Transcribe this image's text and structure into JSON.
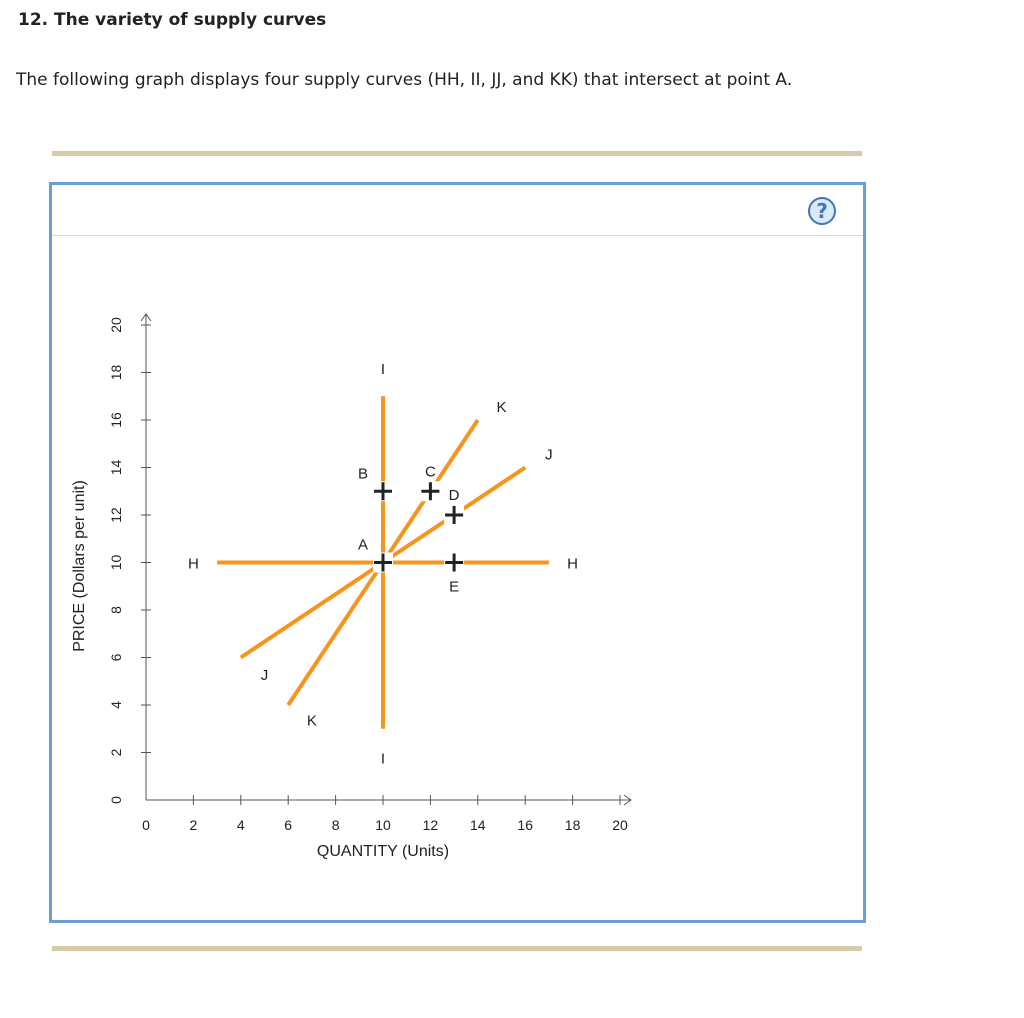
{
  "question": {
    "title": "12. The variety of supply curves",
    "text": "The following graph displays four supply curves (HH, II, JJ, and KK) that intersect at point A."
  },
  "help_button": {
    "label": "?"
  },
  "colors": {
    "curve": "#f7941d",
    "axis": "#555555",
    "point": "#222222",
    "frame": "#6a9fd4",
    "rule": "#d8cba6"
  },
  "chart_data": {
    "type": "line",
    "xlabel": "QUANTITY (Units)",
    "ylabel": "PRICE (Dollars per unit)",
    "xlim": [
      0,
      20
    ],
    "ylim": [
      0,
      20
    ],
    "x_ticks": [
      0,
      2,
      4,
      6,
      8,
      10,
      12,
      14,
      16,
      18,
      20
    ],
    "y_ticks": [
      0,
      2,
      4,
      6,
      8,
      10,
      12,
      14,
      16,
      18,
      20
    ],
    "series": [
      {
        "name": "HH",
        "points": [
          [
            3,
            10
          ],
          [
            17,
            10
          ]
        ],
        "labels": [
          {
            "text": "H",
            "at": [
              2,
              10
            ]
          },
          {
            "text": "H",
            "at": [
              18,
              10
            ]
          }
        ]
      },
      {
        "name": "II",
        "points": [
          [
            10,
            3
          ],
          [
            10,
            17
          ]
        ],
        "labels": [
          {
            "text": "I",
            "at": [
              10,
              1.8
            ]
          },
          {
            "text": "I",
            "at": [
              10,
              18.2
            ]
          }
        ]
      },
      {
        "name": "JJ",
        "points": [
          [
            4,
            6
          ],
          [
            16,
            14
          ]
        ],
        "labels": [
          {
            "text": "J",
            "at": [
              5,
              5.3
            ]
          },
          {
            "text": "J",
            "at": [
              17,
              14.6
            ]
          }
        ]
      },
      {
        "name": "KK",
        "points": [
          [
            6,
            4
          ],
          [
            14,
            16
          ]
        ],
        "labels": [
          {
            "text": "K",
            "at": [
              7,
              3.4
            ]
          },
          {
            "text": "K",
            "at": [
              15,
              16.6
            ]
          }
        ]
      }
    ],
    "points": [
      {
        "label": "A",
        "x": 10,
        "y": 10,
        "label_pos": "top-left"
      },
      {
        "label": "B",
        "x": 10,
        "y": 13,
        "label_pos": "top-left"
      },
      {
        "label": "C",
        "x": 12,
        "y": 13,
        "label_pos": "top"
      },
      {
        "label": "D",
        "x": 13,
        "y": 12,
        "label_pos": "top"
      },
      {
        "label": "E",
        "x": 13,
        "y": 10,
        "label_pos": "bottom"
      }
    ]
  }
}
